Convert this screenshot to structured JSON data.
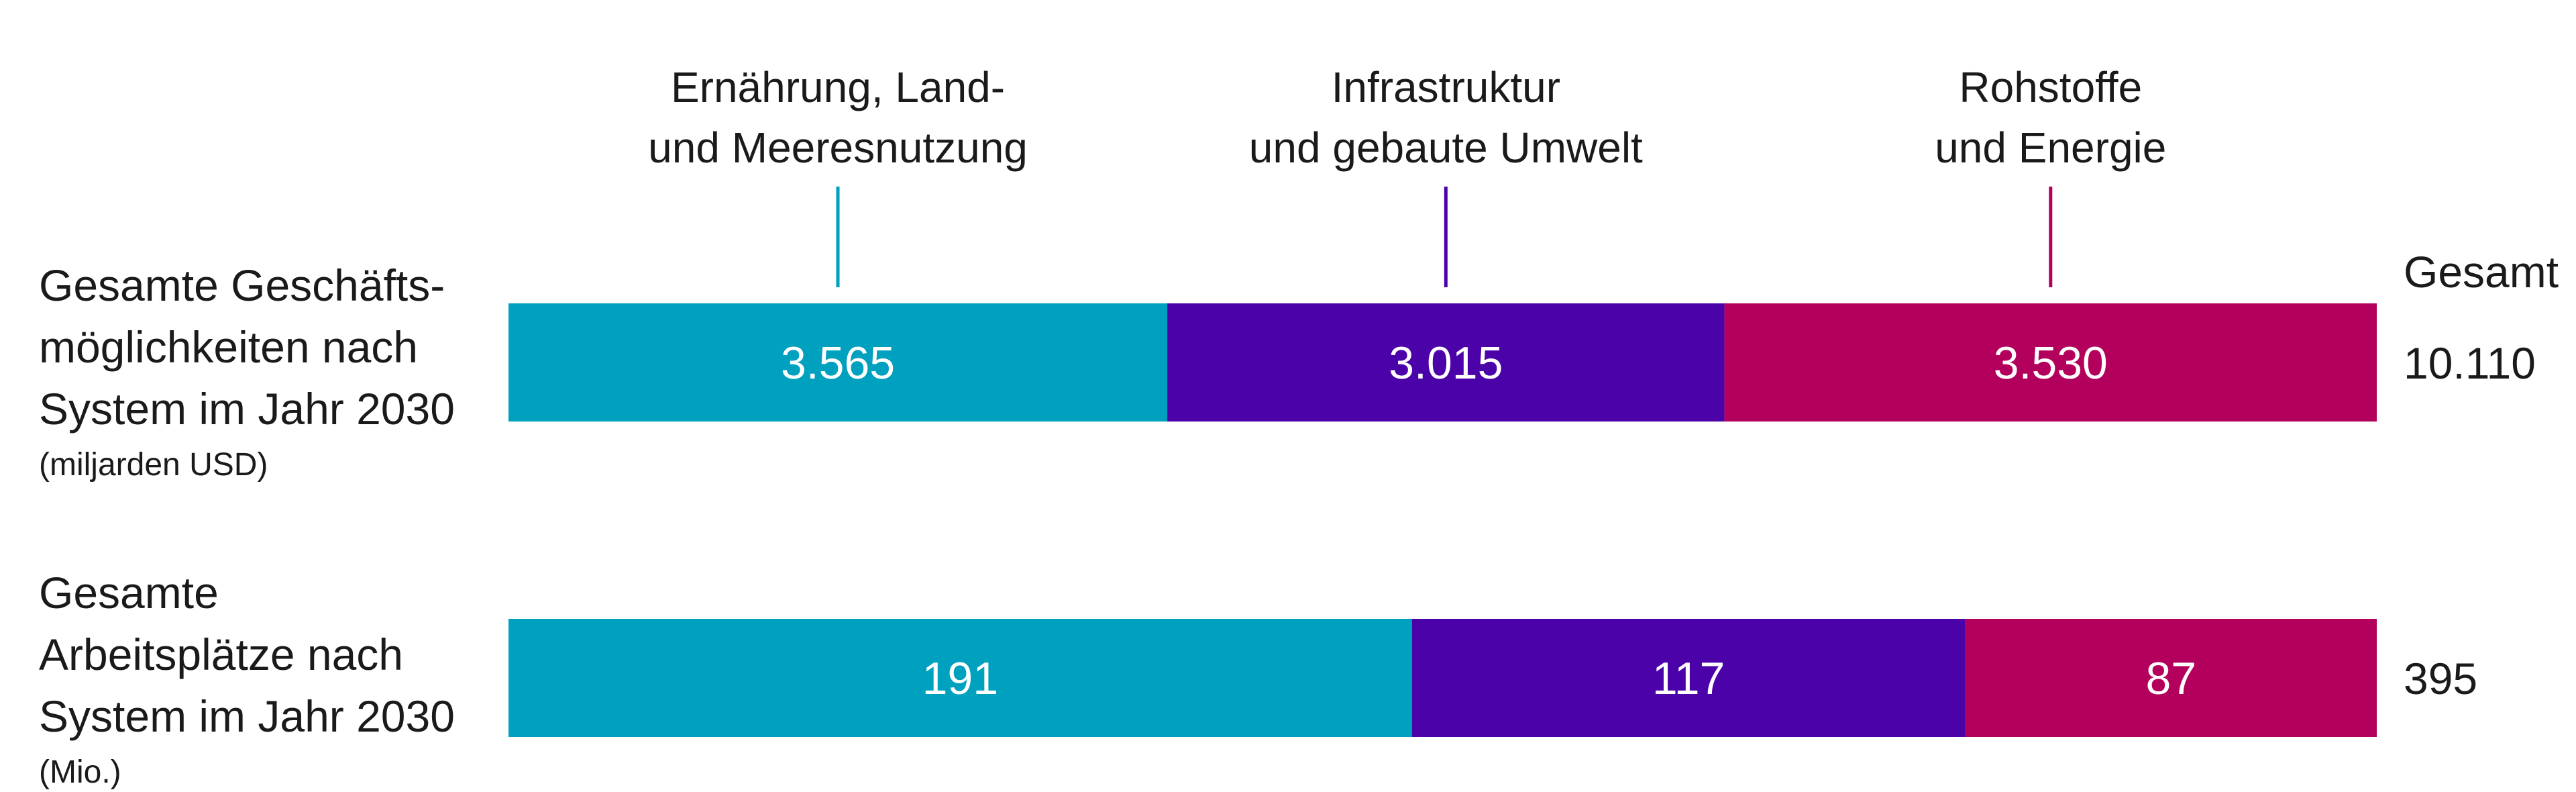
{
  "chart_data": {
    "type": "bar",
    "orientation": "horizontal",
    "stacked": true,
    "normalized": true,
    "categories": [
      {
        "line1": "Ernährung, Land-",
        "line2": "und Meeresnutzung",
        "color": "#00a0bf"
      },
      {
        "line1": "Infrastruktur",
        "line2": "und gebaute Umwelt",
        "color": "#4b02a8"
      },
      {
        "line1": "Rohstoffe",
        "line2": "und Energie",
        "color": "#b3005c"
      }
    ],
    "total_header": "Gesamt",
    "rows": [
      {
        "label_lines": [
          "Gesamte Geschäfts-",
          "möglichkeiten nach",
          "System im Jahr 2030"
        ],
        "unit": "(miljarden USD)",
        "values": [
          3565,
          3015,
          3530
        ],
        "value_labels": [
          "3.565",
          "3.015",
          "3.530"
        ],
        "total": 10110,
        "total_label": "10.110"
      },
      {
        "label_lines": [
          "Gesamte",
          "Arbeitsplätze nach",
          "System im Jahr 2030"
        ],
        "unit": "(Mio.)",
        "values": [
          191,
          117,
          87
        ],
        "value_labels": [
          "191",
          "117",
          "87"
        ],
        "total": 395,
        "total_label": "395"
      }
    ]
  }
}
